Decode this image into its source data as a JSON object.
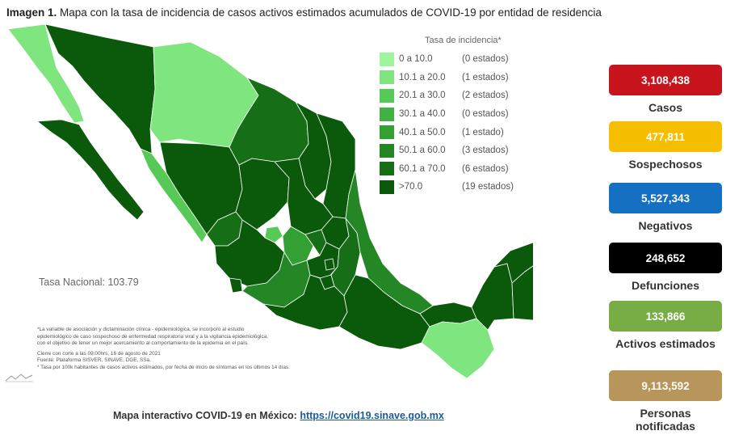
{
  "header": {
    "title_bold": "Imagen 1.",
    "title_rest": "Mapa con la tasa de incidencia de casos activos estimados acumulados de COVID-19 por entidad de residencia"
  },
  "legend": {
    "title": "Tasa de incidencia*",
    "items": [
      {
        "range": "0   a  10.0",
        "count": "(0 estados)",
        "color": "#9ef59e"
      },
      {
        "range": "10.1 a  20.0",
        "count": "(1 estados)",
        "color": "#7fe57f"
      },
      {
        "range": "20.1 a  30.0",
        "count": "(2 estados)",
        "color": "#56c956"
      },
      {
        "range": "30.1 a  40.0",
        "count": "(0 estados)",
        "color": "#43b043"
      },
      {
        "range": "40.1 a  50.0",
        "count": "(1 estado)",
        "color": "#32a032"
      },
      {
        "range": "50.1 a  60.0",
        "count": "(3 estados)",
        "color": "#248624"
      },
      {
        "range": "60.1 a  70.0",
        "count": "(6 estados)",
        "color": "#166f16"
      },
      {
        "range": ">70.0",
        "count": "(19 estados)",
        "color": "#0b5a0b"
      }
    ]
  },
  "national_rate": "Tasa Nacional: 103.79",
  "notes": [
    "*La variable de asociación y dictaminación clínica - epidemiológica, se incorporó al estudio",
    "epidemiológico de caso sospechoso de enfermedad respiratoria viral y a la vigilancia epidemiológica,",
    "con el objetivo de tener un mejor acercamiento al comportamiento de la epidemia en el país.",
    "Cierre con corte a las 09:00hrs, 16 de agosto de 2021",
    "Fuente: Plataforma SISVER, SINAVE, DGE, SSa.",
    "* Tasa por 100k habitantes de casos activos estimados, por fecha de inicio de síntomas en los últimos 14 días."
  ],
  "footer": {
    "text": "Mapa interactivo COVID-19 en México:",
    "link": "https://covid19.sinave.gob.mx"
  },
  "stats": [
    {
      "value": "3,108,438",
      "label": "Casos",
      "color": "#c8141c"
    },
    {
      "value": "477,811",
      "label": "Sospechosos",
      "color": "#f5be00"
    },
    {
      "value": "5,527,343",
      "label": "Negativos",
      "color": "#1570c1"
    },
    {
      "value": "248,652",
      "label": "Defunciones",
      "color": "#000000"
    },
    {
      "value": "133,866",
      "label": "Activos estimados",
      "color": "#78ad45"
    },
    {
      "value": "9,113,592",
      "label": "Personas notificadas",
      "color": "#b8955a"
    }
  ]
}
